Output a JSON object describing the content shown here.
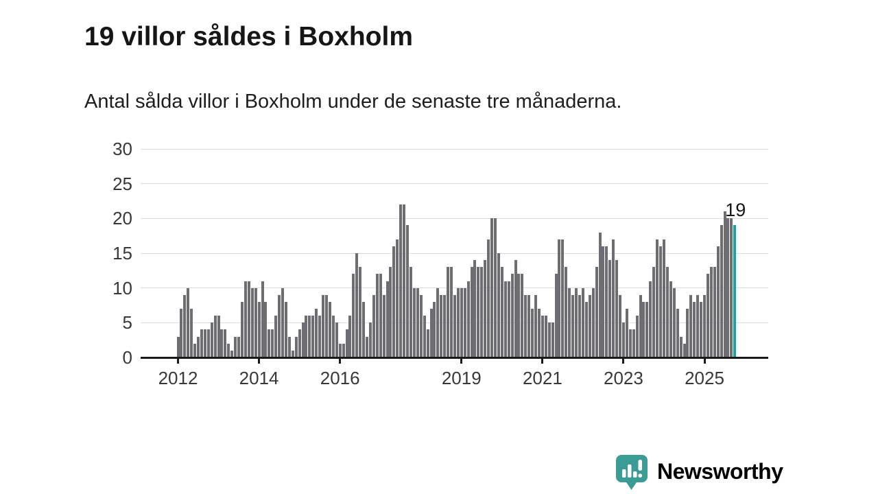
{
  "header": {
    "title": "19 villor såldes i Boxholm",
    "subtitle": "Antal sålda villor i Boxholm under de senaste tre månaderna."
  },
  "chart_data": {
    "type": "bar",
    "title": "19 villor såldes i Boxholm",
    "subtitle": "Antal sålda villor i Boxholm under de senaste tre månaderna.",
    "frequency": "monthly",
    "x_start": "2012-01",
    "x_end": "2025-10",
    "values": [
      3,
      7,
      9,
      10,
      7,
      2,
      3,
      4,
      4,
      4,
      5,
      6,
      6,
      4,
      4,
      2,
      1,
      3,
      3,
      8,
      11,
      11,
      10,
      10,
      8,
      11,
      8,
      4,
      4,
      6,
      9,
      10,
      8,
      3,
      1,
      3,
      4,
      5,
      6,
      6,
      6,
      7,
      6,
      9,
      9,
      8,
      6,
      5,
      2,
      2,
      4,
      6,
      12,
      15,
      13,
      8,
      3,
      5,
      9,
      12,
      12,
      9,
      11,
      13,
      16,
      17,
      22,
      22,
      19,
      13,
      10,
      10,
      9,
      6,
      4,
      7,
      8,
      10,
      9,
      9,
      13,
      13,
      9,
      10,
      10,
      10,
      11,
      13,
      14,
      13,
      13,
      14,
      17,
      20,
      20,
      15,
      13,
      11,
      11,
      12,
      14,
      12,
      12,
      9,
      9,
      7,
      9,
      7,
      6,
      6,
      5,
      5,
      12,
      17,
      17,
      13,
      10,
      9,
      10,
      9,
      10,
      8,
      9,
      10,
      13,
      18,
      16,
      16,
      14,
      17,
      14,
      9,
      5,
      7,
      4,
      4,
      6,
      9,
      8,
      8,
      11,
      13,
      17,
      16,
      17,
      13,
      11,
      10,
      7,
      3,
      2,
      7,
      9,
      8,
      9,
      8,
      9,
      12,
      13,
      13,
      16,
      19,
      21,
      20,
      20,
      19
    ],
    "highlight": {
      "index": 165,
      "value": 19,
      "label": "19"
    },
    "ylim": [
      0,
      30
    ],
    "yticks": [
      0,
      5,
      10,
      15,
      20,
      25,
      30
    ],
    "xticks": [
      {
        "label": "2012",
        "month_index": 0
      },
      {
        "label": "2014",
        "month_index": 24
      },
      {
        "label": "2016",
        "month_index": 48
      },
      {
        "label": "2019",
        "month_index": 84
      },
      {
        "label": "2021",
        "month_index": 108
      },
      {
        "label": "2023",
        "month_index": 132
      },
      {
        "label": "2025",
        "month_index": 156
      }
    ],
    "grid": "horizontal",
    "legend": "none",
    "colors": {
      "bar": "#6d6d72",
      "highlight": "#17a7a2",
      "grid": "#dcdcdc",
      "axis": "#1a1a1a",
      "tick_label": "#383838",
      "annotation": "#161616"
    }
  },
  "logo": {
    "text": "Newsworthy",
    "color": "#3a9c94",
    "icon": "newsworthy-speech-bubble-bar-chart-icon"
  }
}
